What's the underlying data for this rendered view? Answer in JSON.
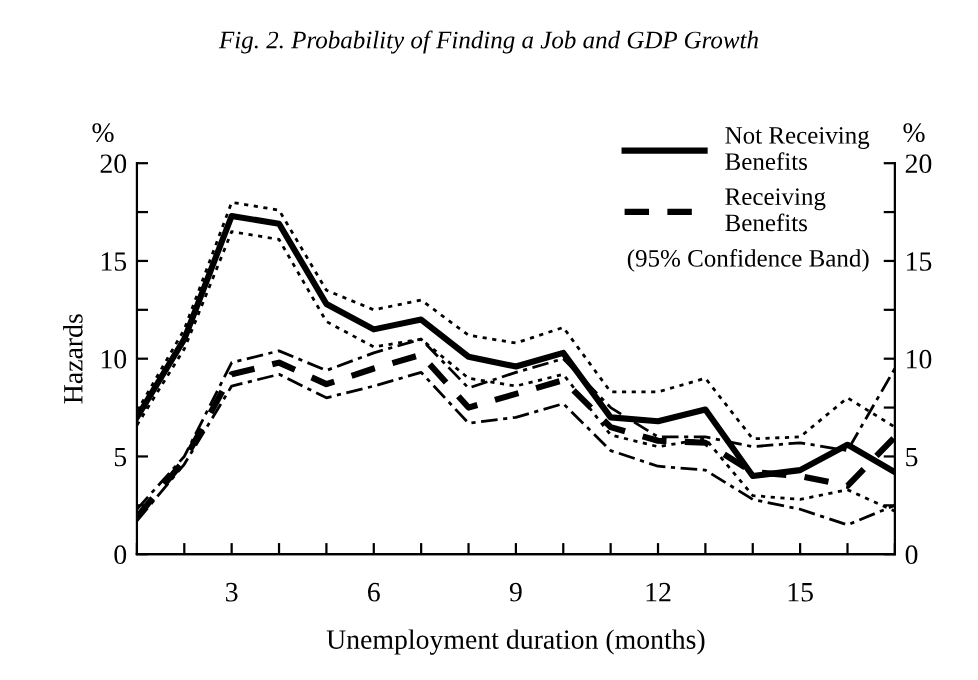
{
  "chart_data": {
    "type": "line",
    "title": "Fig. 2. Probability of Finding a Job and GDP Growth",
    "xlabel": "Unemployment duration (months)",
    "ylabel": "Hazards",
    "x": [
      1,
      2,
      3,
      4,
      5,
      6,
      7,
      8,
      9,
      10,
      11,
      12,
      13,
      14,
      15,
      16,
      17
    ],
    "series": [
      {
        "name": "Not Receiving\nBenefits",
        "color": "#000000",
        "line_style": "solid",
        "values": [
          7.0,
          11.0,
          17.3,
          16.9,
          12.8,
          11.5,
          12.0,
          10.1,
          9.6,
          10.3,
          7.0,
          6.8,
          7.4,
          4.0,
          4.3,
          5.6,
          4.2
        ]
      },
      {
        "name": "Receiving\nBenefits",
        "color": "#000000",
        "line_style": "dashed",
        "values": [
          1.9,
          4.8,
          9.2,
          9.8,
          8.7,
          9.5,
          10.2,
          7.5,
          8.2,
          8.9,
          6.5,
          5.8,
          5.7,
          4.2,
          4.0,
          3.5,
          6.0
        ]
      },
      {
        "color": "#000000",
        "line_style": "dotted",
        "values": [
          7.3,
          11.5,
          18.0,
          17.6,
          13.5,
          12.5,
          13.0,
          11.2,
          10.8,
          11.6,
          8.3,
          8.3,
          9.0,
          5.9,
          6.0,
          8.0,
          6.5
        ]
      },
      {
        "color": "#000000",
        "line_style": "dotted",
        "values": [
          6.6,
          10.5,
          16.5,
          16.1,
          11.9,
          10.6,
          11.0,
          9.0,
          8.6,
          9.2,
          6.1,
          5.5,
          5.9,
          3.0,
          2.8,
          3.3,
          2.2
        ]
      },
      {
        "color": "#000000",
        "line_style": "dashed",
        "values": [
          2.3,
          5.0,
          9.8,
          10.4,
          9.4,
          10.3,
          11.0,
          8.5,
          9.3,
          10.0,
          7.5,
          6.0,
          6.0,
          5.5,
          5.7,
          5.3,
          9.5
        ]
      },
      {
        "color": "#000000",
        "line_style": "dashed",
        "values": [
          1.7,
          4.6,
          8.6,
          9.2,
          8.0,
          8.6,
          9.3,
          6.7,
          7.0,
          7.7,
          5.3,
          4.5,
          4.3,
          2.8,
          2.3,
          1.5,
          2.5
        ]
      }
    ],
    "legend_title": "(95% Confidence Band)",
    "xlim": [
      1,
      17
    ],
    "xticks": [
      {
        "value": 1,
        "label": null
      },
      {
        "value": 2,
        "label": null
      },
      3,
      {
        "value": 4,
        "label": null
      },
      {
        "value": 5,
        "label": null
      },
      6,
      {
        "value": 7,
        "label": null
      },
      {
        "value": 8,
        "label": null
      },
      9,
      {
        "value": 10,
        "label": null
      },
      {
        "value": 11,
        "label": null
      },
      12,
      {
        "value": 13,
        "label": null
      },
      {
        "value": 14,
        "label": null
      },
      15,
      {
        "value": 16,
        "label": null
      },
      {
        "value": 17,
        "label": null
      }
    ],
    "ylim": [
      0,
      20
    ],
    "yticks": [
      0,
      {
        "value": 2.5,
        "label": null
      },
      5,
      {
        "value": 7.5,
        "label": null
      },
      10,
      {
        "value": 12.5,
        "label": null
      },
      15,
      {
        "value": 17.5,
        "label": null
      },
      20
    ],
    "y2lim": [
      0,
      20
    ],
    "y2ticks": [
      0,
      {
        "value": 2.5,
        "label": null
      },
      5,
      {
        "value": 7.5,
        "label": null
      },
      10,
      {
        "value": 12.5,
        "label": null
      },
      15,
      {
        "value": 17.5,
        "label": null
      },
      20
    ],
    "annotations": [
      "%",
      "%"
    ],
    "grid": false,
    "legend": "top right",
    "marker": "none"
  }
}
